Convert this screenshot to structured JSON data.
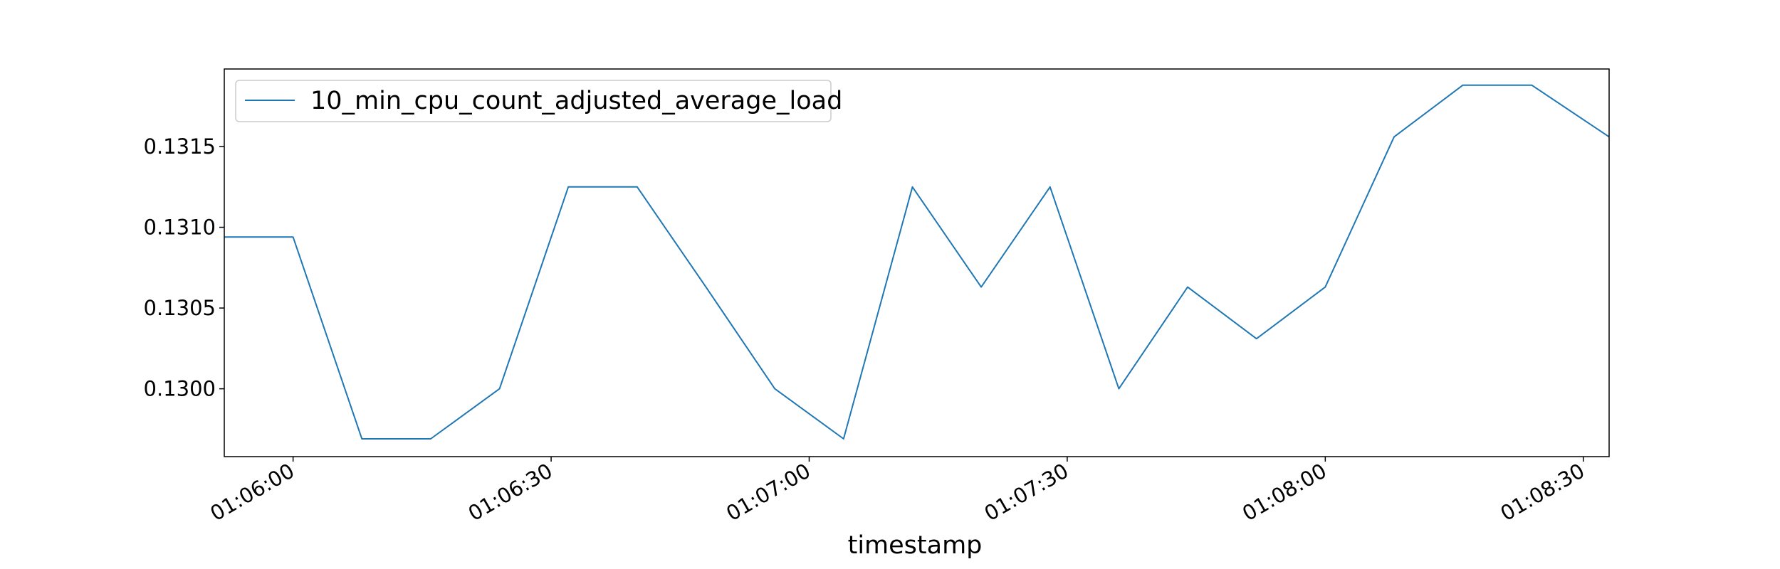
{
  "chart_data": {
    "type": "line",
    "xlabel": "timestamp",
    "ylabel": "",
    "x_tick_labels": [
      "01:06:00",
      "01:06:30",
      "01:07:00",
      "01:07:30",
      "01:08:00",
      "01:08:30"
    ],
    "y_tick_labels": [
      "0.1300",
      "0.1305",
      "0.1310",
      "0.1315"
    ],
    "ylim": [
      0.12958,
      0.13198
    ],
    "xlim": [
      "01:05:52",
      "01:08:33"
    ],
    "grid": false,
    "legend_position": "top-left",
    "series": [
      {
        "name": "10_min_cpu_count_adjusted_average_load",
        "color": "#1f77b4",
        "x": [
          "01:05:52",
          "01:06:00",
          "01:06:08",
          "01:06:16",
          "01:06:24",
          "01:06:32",
          "01:06:40",
          "01:06:48",
          "01:06:56",
          "01:07:04",
          "01:07:12",
          "01:07:20",
          "01:07:28",
          "01:07:36",
          "01:07:44",
          "01:07:52",
          "01:08:00",
          "01:08:08",
          "01:08:16",
          "01:08:24",
          "01:08:33"
        ],
        "values": [
          0.13094,
          0.13094,
          0.12969,
          0.12969,
          0.13,
          0.13125,
          0.13125,
          0.13063,
          0.13,
          0.12969,
          0.13125,
          0.13063,
          0.13125,
          0.13,
          0.13063,
          0.13031,
          0.13063,
          0.13156,
          0.13188,
          0.13188,
          0.13156
        ]
      }
    ]
  }
}
